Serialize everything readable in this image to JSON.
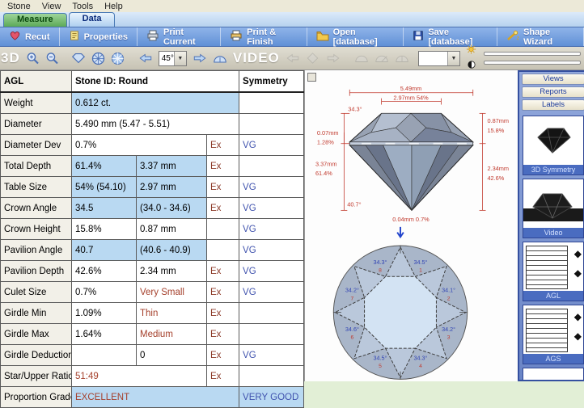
{
  "menu": {
    "items": [
      "Stone",
      "View",
      "Tools",
      "Help"
    ]
  },
  "tabs": {
    "measure": "Measure",
    "data": "Data"
  },
  "toolbar": {
    "recut": "Recut",
    "properties": "Properties",
    "print_current": "Print Current",
    "print_finish": "Print & Finish",
    "open_db": "Open [database]",
    "save_db": "Save [database]",
    "shape_wizard": "Shape Wizard"
  },
  "view_toolbar": {
    "left_label": "3D",
    "angle_value": "45°",
    "video_label": "VIDEO",
    "icons": [
      "zoom-in",
      "zoom-out",
      "diamond-side",
      "diamond-top",
      "facet-pattern",
      "arrow-left",
      "arrow-right",
      "protractor",
      "sun-brightness",
      "contrast"
    ]
  },
  "table": {
    "header": {
      "col1": "AGL",
      "col2": "Stone ID: Round",
      "col3": "Symmetry"
    },
    "rows": [
      {
        "label": "Weight",
        "v1": "0.612 ct.",
        "span": 3,
        "hl": true,
        "sym": ""
      },
      {
        "label": "Diameter",
        "v1": "5.490 mm  (5.47 - 5.51)",
        "span": 3,
        "sym": ""
      },
      {
        "label": "Diameter Dev",
        "v1": "0.7%",
        "span": 2,
        "ex": "Ex",
        "sym": "VG"
      },
      {
        "label": "Total Depth",
        "v1": "61.4%",
        "v2": "3.37 mm",
        "hl": true,
        "ex": "Ex",
        "sym": ""
      },
      {
        "label": "Table Size",
        "v1": "54% (54.10)",
        "v2": "2.97 mm",
        "hl": true,
        "ex": "Ex",
        "sym": "VG"
      },
      {
        "label": "Crown Angle",
        "v1": "34.5",
        "v2": "(34.0 - 34.6)",
        "hl": true,
        "ex": "Ex",
        "sym": "VG"
      },
      {
        "label": "Crown Height",
        "v1": "15.8%",
        "v2": "0.87 mm",
        "ex": "",
        "sym": "VG"
      },
      {
        "label": "Pavilion Angle",
        "v1": "40.7",
        "v2": "(40.6 - 40.9)",
        "hl": true,
        "ex": "",
        "sym": "VG"
      },
      {
        "label": "Pavilion Depth",
        "v1": "42.6%",
        "v2": "2.34 mm",
        "ex": "Ex",
        "sym": "VG"
      },
      {
        "label": "Culet Size",
        "v1": "0.7%",
        "v2": "Very Small",
        "v2_red": true,
        "ex": "Ex",
        "sym": "VG"
      },
      {
        "label": "Girdle Min",
        "v1": "1.09%",
        "v2": "Thin",
        "v2_red": true,
        "ex": "Ex",
        "sym": ""
      },
      {
        "label": "Girdle Max",
        "v1": "1.64%",
        "v2": "Medium",
        "v2_red": true,
        "ex": "Ex",
        "sym": ""
      },
      {
        "label": "Girdle Deduction",
        "v1": "",
        "v2": "0",
        "ex": "Ex",
        "sym": "VG"
      },
      {
        "label": "Star/Upper Ratio",
        "v1": "51:49",
        "v1_red": true,
        "span": 2,
        "ex": "Ex",
        "sym": ""
      },
      {
        "label": "Proportion Grade",
        "v1": "EXCELLENT",
        "v1_red": true,
        "span": 3,
        "hl": true,
        "sym": "VERY GOOD",
        "sym_hl": true
      }
    ]
  },
  "diagram": {
    "profile": {
      "total_width": "5.49mm",
      "table_width": "2.97mm 54%",
      "crown_angle": "34.3°",
      "girdle_mm": "0.07mm",
      "girdle_pct": "1.28%",
      "depth_mm": "3.37mm",
      "depth_pct": "61.4%",
      "pavilion_angle": "40.7°",
      "culet": "0.04mm 0.7%",
      "crown_height_mm": "0.87mm",
      "crown_height_pct": "15.8%",
      "pavilion_depth_mm": "2.34mm",
      "pavilion_depth_pct": "42.6%"
    },
    "top_view": {
      "facets": [
        {
          "angle": "34.5°",
          "num": "1"
        },
        {
          "angle": "34.1°",
          "num": "2"
        },
        {
          "angle": "34.2°",
          "num": "3"
        },
        {
          "angle": "34.3°",
          "num": "4"
        },
        {
          "angle": "34.5°",
          "num": "5"
        },
        {
          "angle": "34.6°",
          "num": "6"
        },
        {
          "angle": "34.2°",
          "num": "7"
        },
        {
          "angle": "34.3°",
          "num": "8"
        }
      ]
    }
  },
  "sidebar": {
    "buttons": [
      "Views",
      "Reports",
      "Labels"
    ],
    "thumbnails": [
      {
        "caption": "3D Symmetry"
      },
      {
        "caption": "Video"
      },
      {
        "caption": "AGL"
      },
      {
        "caption": "AGS"
      },
      {
        "caption": ""
      }
    ]
  },
  "colors": {
    "highlight_blue": "#b9d9f2",
    "grade_red": "#a5402c",
    "symmetry_blue": "#4053ae",
    "dimension_red": "#c13a2e",
    "sidebar_blue": "#4a6cc0"
  }
}
